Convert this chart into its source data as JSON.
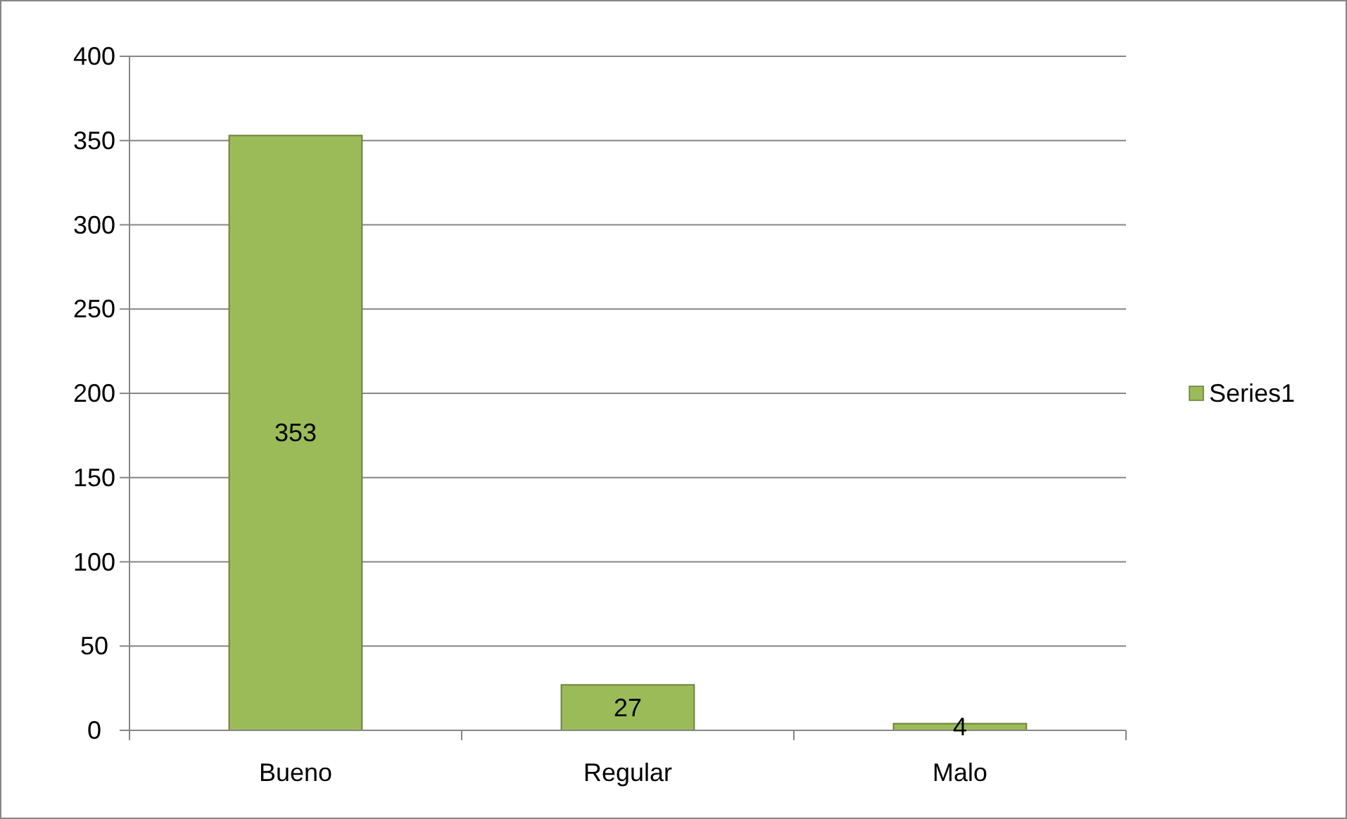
{
  "chart_data": {
    "type": "bar",
    "categories": [
      "Bueno",
      "Regular",
      "Malo"
    ],
    "series": [
      {
        "name": "Series1",
        "color": "#9bbb59",
        "values": [
          353,
          27,
          4
        ]
      }
    ],
    "ylim": [
      0,
      400
    ],
    "yticks": [
      0,
      50,
      100,
      150,
      200,
      250,
      300,
      350,
      400
    ],
    "grid": "y",
    "legend": "right",
    "data_labels": true
  }
}
